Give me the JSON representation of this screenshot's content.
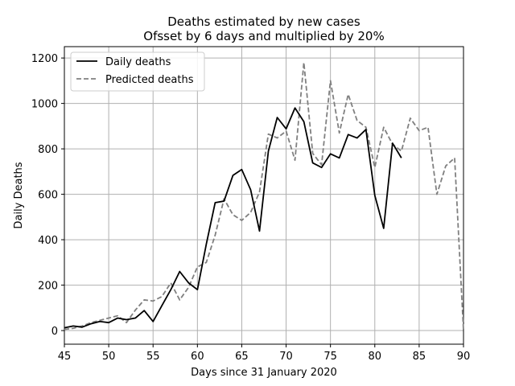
{
  "chart_data": {
    "type": "line",
    "title": "Deaths estimated by new cases",
    "subtitle": "Ofsset by 6 days and multiplied by 20%",
    "xlabel": "Days since 31 January 2020",
    "ylabel": "Daily Deaths",
    "xlim": [
      45,
      90
    ],
    "ylim": [
      -60,
      1250
    ],
    "xticks": [
      45,
      50,
      55,
      60,
      65,
      70,
      75,
      80,
      85,
      90
    ],
    "yticks": [
      0,
      200,
      400,
      600,
      800,
      1000,
      1200
    ],
    "grid": true,
    "legend_position": "top-left",
    "series": [
      {
        "name": "Daily deaths",
        "color": "#000000",
        "style": "solid",
        "x": [
          45,
          46,
          47,
          48,
          49,
          50,
          51,
          52,
          53,
          54,
          55,
          56,
          57,
          58,
          59,
          60,
          61,
          62,
          63,
          64,
          65,
          66,
          67,
          68,
          69,
          70,
          71,
          72,
          73,
          74,
          75,
          76,
          77,
          78,
          79,
          80,
          81,
          82,
          83
        ],
        "y": [
          12,
          20,
          15,
          30,
          40,
          35,
          55,
          48,
          55,
          88,
          40,
          110,
          180,
          260,
          210,
          180,
          380,
          563,
          570,
          683,
          709,
          620,
          438,
          790,
          938,
          888,
          980,
          920,
          738,
          718,
          778,
          760,
          863,
          848,
          885,
          595,
          450,
          825,
          760
        ]
      },
      {
        "name": "Predicted deaths",
        "color": "#808080",
        "style": "dashed",
        "x": [
          45,
          46,
          47,
          48,
          49,
          50,
          51,
          52,
          53,
          54,
          55,
          56,
          57,
          58,
          59,
          60,
          61,
          62,
          63,
          64,
          65,
          66,
          67,
          68,
          69,
          70,
          71,
          72,
          73,
          74,
          75,
          76,
          77,
          78,
          79,
          80,
          81,
          82,
          83,
          84,
          85,
          86,
          87,
          88,
          89,
          90
        ],
        "y": [
          5,
          10,
          20,
          35,
          45,
          55,
          65,
          35,
          90,
          135,
          130,
          150,
          210,
          135,
          190,
          280,
          300,
          420,
          580,
          510,
          485,
          520,
          610,
          865,
          848,
          878,
          750,
          1180,
          780,
          730,
          1100,
          870,
          1040,
          925,
          895,
          718,
          895,
          820,
          790,
          935,
          880,
          895,
          600,
          725,
          760,
          0
        ]
      }
    ]
  }
}
